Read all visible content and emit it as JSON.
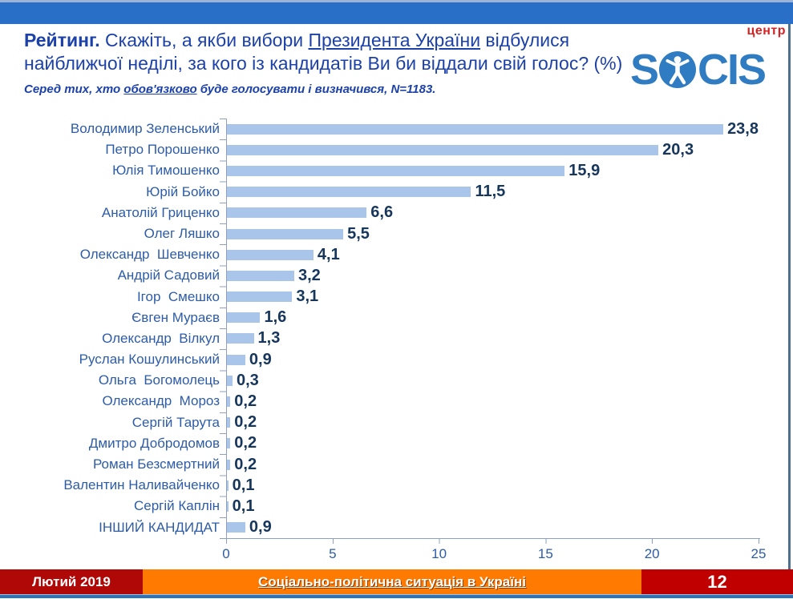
{
  "header": {
    "title": {
      "bold_lead": "Рейтинг.",
      "question_before": " Скажіть, а якби вибори ",
      "underlined": "Президента України",
      "question_after": " відбулися найближчої неділі, за кого із кандидатів Ви би віддали свій голос? (%) ",
      "note_before": "Серед тих, хто ",
      "note_underlined": "обов'язково",
      "note_after": " буде голосувати і визначився, N=1183."
    },
    "logo": {
      "left": "S",
      "right": "CIS",
      "badge": "центр"
    }
  },
  "chart_data": {
    "type": "bar",
    "orientation": "horizontal",
    "title": "Рейтинг. Скажіть, а якби вибори Президента України відбулися найближчої неділі, за кого із кандидатів Ви би віддали свій голос? (%)",
    "subtitle": "Серед тих, хто обов'язково буде голосувати і визначився, N=1183.",
    "categories": [
      "Володимир Зеленський",
      "Петро Порошенко",
      "Юлія Тимошенко",
      "Юрій Бойко",
      "Анатолій Гриценко",
      "Олег Ляшко",
      "Олександр  Шевченко",
      "Андрій Садовий",
      "Ігор  Смешко",
      "Євген Мураєв",
      "Олександр  Вілкул",
      "Руслан Кошулинський",
      "Ольга  Богомолець",
      "Олександр  Мороз",
      "Сергій Тарута",
      "Дмитро Добродомов",
      "Роман Безсмертний",
      "Валентин Наливайченко",
      "Сергій Каплін",
      "ІНШИЙ КАНДИДАТ"
    ],
    "values": [
      23.8,
      20.3,
      15.9,
      11.5,
      6.6,
      5.5,
      4.1,
      3.2,
      3.1,
      1.6,
      1.3,
      0.9,
      0.3,
      0.2,
      0.2,
      0.2,
      0.2,
      0.1,
      0.1,
      0.9
    ],
    "value_labels": [
      "23,8",
      "20,3",
      "15,9",
      "11,5",
      "6,6",
      "5,5",
      "4,1",
      "3,2",
      "3,1",
      "1,6",
      "1,3",
      "0,9",
      "0,3",
      "0,2",
      "0,2",
      "0,2",
      "0,2",
      "0,1",
      "0,1",
      "0,9"
    ],
    "x_ticks": [
      0,
      5,
      10,
      15,
      20,
      25
    ],
    "xlim": [
      0,
      25
    ],
    "grid": false,
    "legend": null,
    "bar_color": "#A9C6EA"
  },
  "footer": {
    "date": "Лютий 2019",
    "title": "Соціально-політична ситуація в Україні",
    "page": "12"
  },
  "colors": {
    "top_bar": "#2A6FC7",
    "title_text": "#1C41A8",
    "category_text": "#2D5CA8",
    "value_text": "#16365C",
    "axis": "#8EA0BE",
    "bar_fill": "#A9C6EA",
    "footer_date_bg": "#B00707",
    "footer_mid_bg": "#FF7A00",
    "footer_page_bg": "#C00000",
    "bottom_line": "#2E74B5",
    "logo_blue": "#2F7CC2",
    "logo_badge_red": "#D42323"
  }
}
